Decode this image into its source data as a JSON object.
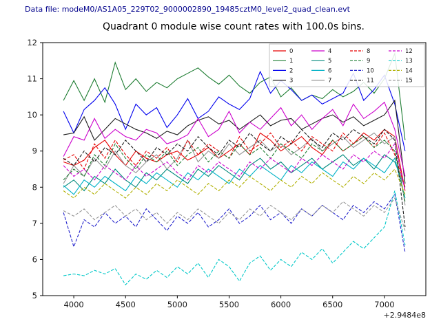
{
  "header": {
    "datafile_label": "Data file: modeM0/AS1A05_229T02_9000002890_19485cztM0_level2_quad_clean.evt"
  },
  "chart_data": {
    "type": "line",
    "title": "Quadrant 0 module wise count rates with 100.0s bins.",
    "xlabel": "",
    "ylabel": "",
    "x_offset_label": "+2.9484e8",
    "xlim": [
      3700,
      7400
    ],
    "ylim": [
      5,
      12
    ],
    "x_ticks": [
      4000,
      4500,
      5000,
      5500,
      6000,
      6500,
      7000
    ],
    "y_ticks": [
      5,
      6,
      7,
      8,
      9,
      10,
      11,
      12
    ],
    "grid": false,
    "legend_position": "upper right",
    "x": [
      3900,
      4000,
      4100,
      4200,
      4300,
      4400,
      4500,
      4600,
      4700,
      4800,
      4900,
      5000,
      5100,
      5200,
      5300,
      5400,
      5500,
      5600,
      5700,
      5800,
      5900,
      6000,
      6100,
      6200,
      6300,
      6400,
      6500,
      6600,
      6700,
      6800,
      6900,
      7000,
      7100,
      7200
    ],
    "series": [
      {
        "name": "0",
        "color": "#e60000",
        "dash": "solid",
        "values": [
          8.7,
          8.6,
          8.75,
          9.1,
          9.3,
          8.9,
          8.6,
          9.0,
          8.8,
          8.7,
          8.9,
          9.0,
          8.75,
          8.9,
          9.1,
          8.8,
          9.0,
          9.2,
          8.9,
          9.5,
          9.3,
          9.0,
          9.2,
          9.4,
          9.1,
          8.9,
          9.3,
          9.0,
          9.2,
          9.5,
          9.3,
          9.6,
          9.4,
          7.9
        ]
      },
      {
        "name": "1",
        "color": "#1e7d32",
        "dash": "solid",
        "values": [
          10.4,
          10.95,
          10.4,
          11.0,
          10.35,
          11.45,
          10.7,
          11.0,
          10.65,
          10.9,
          10.75,
          11.0,
          11.15,
          11.3,
          11.05,
          10.85,
          11.1,
          10.8,
          10.6,
          10.9,
          11.05,
          10.5,
          10.75,
          10.4,
          10.55,
          10.45,
          10.7,
          10.5,
          10.65,
          10.9,
          10.6,
          11.0,
          11.7,
          9.3
        ]
      },
      {
        "name": "2",
        "color": "#0000ee",
        "dash": "solid",
        "values": [
          10.1,
          9.5,
          10.15,
          10.4,
          10.75,
          10.3,
          9.6,
          10.3,
          10.0,
          10.2,
          9.65,
          10.0,
          10.45,
          9.9,
          10.1,
          10.5,
          10.3,
          10.15,
          10.45,
          11.2,
          10.6,
          10.95,
          10.7,
          10.4,
          10.55,
          10.3,
          10.45,
          10.6,
          11.15,
          10.4,
          10.7,
          11.1,
          10.3,
          9.0
        ]
      },
      {
        "name": "3",
        "color": "#1a1a1a",
        "dash": "solid",
        "values": [
          9.45,
          9.5,
          9.95,
          9.3,
          9.6,
          9.9,
          9.75,
          9.6,
          9.5,
          9.35,
          9.55,
          9.45,
          9.7,
          9.85,
          9.95,
          9.75,
          9.85,
          9.6,
          9.8,
          10.0,
          9.7,
          9.85,
          9.9,
          9.6,
          9.75,
          9.9,
          10.0,
          9.8,
          9.95,
          9.7,
          9.85,
          10.0,
          10.4,
          8.1
        ]
      },
      {
        "name": "4",
        "color": "#cc00cc",
        "dash": "solid",
        "values": [
          8.85,
          9.4,
          9.3,
          9.9,
          9.35,
          9.6,
          9.4,
          9.3,
          9.6,
          9.5,
          9.2,
          9.3,
          9.45,
          9.9,
          9.4,
          9.6,
          10.1,
          9.5,
          9.8,
          9.6,
          9.9,
          10.2,
          9.7,
          10.0,
          9.6,
          9.9,
          10.15,
          9.7,
          10.3,
          9.9,
          10.1,
          10.35,
          9.6,
          8.3
        ]
      },
      {
        "name": "5",
        "color": "#00897b",
        "dash": "solid",
        "values": [
          8.0,
          8.2,
          7.9,
          8.3,
          8.1,
          8.5,
          8.2,
          8.0,
          8.4,
          8.2,
          8.5,
          8.3,
          8.1,
          8.5,
          8.3,
          8.6,
          8.4,
          8.2,
          8.6,
          8.8,
          8.5,
          8.7,
          8.4,
          8.6,
          8.8,
          8.5,
          8.7,
          8.9,
          8.6,
          8.8,
          8.5,
          8.9,
          8.7,
          8.0
        ]
      },
      {
        "name": "6",
        "color": "#00b2c6",
        "dash": "solid",
        "values": [
          8.05,
          7.8,
          8.2,
          8.0,
          8.3,
          8.1,
          7.9,
          8.3,
          8.1,
          8.4,
          8.2,
          8.0,
          8.4,
          8.2,
          8.5,
          8.3,
          8.1,
          8.5,
          8.3,
          8.6,
          8.4,
          8.2,
          8.6,
          8.4,
          8.7,
          8.5,
          8.3,
          8.7,
          8.5,
          8.8,
          8.6,
          8.4,
          8.8,
          7.7
        ]
      },
      {
        "name": "7",
        "color": "#969696",
        "dash": "solid",
        "values": [
          8.1,
          8.6,
          8.3,
          8.8,
          8.5,
          9.0,
          8.6,
          8.4,
          8.7,
          8.9,
          8.5,
          8.8,
          9.3,
          8.7,
          9.0,
          8.8,
          9.2,
          8.9,
          9.1,
          9.3,
          9.0,
          9.2,
          8.9,
          9.1,
          9.35,
          9.0,
          9.2,
          9.4,
          9.1,
          9.3,
          9.5,
          9.2,
          9.4,
          7.5
        ]
      },
      {
        "name": "8",
        "color": "#e60000",
        "dash": "dashed",
        "values": [
          8.75,
          8.9,
          8.5,
          9.2,
          8.8,
          9.3,
          8.9,
          8.6,
          9.0,
          8.8,
          9.1,
          8.7,
          9.3,
          8.9,
          9.2,
          9.0,
          8.8,
          9.4,
          9.0,
          9.2,
          9.5,
          9.1,
          9.3,
          9.0,
          9.4,
          9.2,
          9.0,
          9.5,
          9.2,
          9.4,
          9.1,
          9.5,
          8.9,
          8.0
        ]
      },
      {
        "name": "9",
        "color": "#1e7d32",
        "dash": "dashed",
        "values": [
          8.2,
          8.5,
          8.3,
          8.9,
          8.6,
          9.2,
          8.8,
          8.5,
          8.9,
          8.7,
          9.0,
          8.6,
          8.9,
          9.1,
          8.7,
          9.0,
          8.8,
          9.2,
          8.9,
          9.1,
          8.8,
          9.2,
          9.0,
          8.8,
          9.2,
          9.0,
          9.3,
          9.0,
          9.2,
          9.4,
          9.1,
          9.3,
          9.0,
          7.6
        ]
      },
      {
        "name": "10",
        "color": "#2222cc",
        "dash": "dashed",
        "values": [
          7.3,
          6.35,
          7.1,
          6.9,
          7.3,
          7.0,
          7.2,
          6.9,
          7.4,
          7.1,
          6.8,
          7.2,
          7.0,
          7.3,
          6.9,
          7.1,
          7.4,
          7.0,
          7.2,
          7.5,
          7.1,
          7.3,
          7.0,
          7.4,
          7.2,
          7.5,
          7.3,
          7.1,
          7.5,
          7.3,
          7.6,
          7.4,
          7.8,
          6.2
        ]
      },
      {
        "name": "11",
        "color": "#1a1a1a",
        "dash": "dashed",
        "values": [
          8.8,
          8.6,
          9.0,
          8.7,
          9.1,
          8.9,
          9.3,
          9.0,
          8.7,
          9.1,
          8.9,
          9.2,
          9.0,
          9.4,
          9.1,
          8.9,
          9.3,
          9.1,
          9.5,
          9.2,
          9.0,
          9.4,
          9.2,
          9.6,
          9.3,
          9.1,
          9.5,
          9.3,
          9.6,
          9.4,
          9.2,
          9.6,
          9.3,
          6.9
        ]
      },
      {
        "name": "12",
        "color": "#cc00cc",
        "dash": "dashed",
        "values": [
          8.6,
          8.3,
          8.5,
          8.2,
          8.6,
          8.4,
          8.2,
          8.6,
          8.3,
          8.5,
          8.7,
          8.4,
          8.2,
          8.6,
          8.4,
          8.7,
          8.5,
          8.3,
          8.7,
          8.5,
          8.8,
          8.6,
          8.4,
          8.8,
          8.6,
          8.9,
          8.7,
          8.5,
          8.9,
          8.7,
          9.0,
          8.8,
          9.2,
          7.9
        ]
      },
      {
        "name": "13",
        "color": "#00c8c8",
        "dash": "dashed",
        "values": [
          5.55,
          5.6,
          5.55,
          5.7,
          5.6,
          5.75,
          5.3,
          5.6,
          5.45,
          5.7,
          5.5,
          5.8,
          5.6,
          5.9,
          5.5,
          6.0,
          5.8,
          5.4,
          5.9,
          6.1,
          5.7,
          6.0,
          5.8,
          6.2,
          6.0,
          6.3,
          5.9,
          6.2,
          6.5,
          6.3,
          6.6,
          6.9,
          7.9,
          6.4
        ]
      },
      {
        "name": "14",
        "color": "#b0b000",
        "dash": "dashed",
        "values": [
          7.9,
          7.7,
          8.0,
          7.8,
          8.1,
          7.9,
          7.7,
          8.0,
          7.8,
          8.1,
          7.9,
          8.2,
          8.0,
          7.8,
          8.1,
          7.9,
          8.2,
          8.0,
          8.3,
          8.1,
          7.9,
          8.2,
          8.0,
          8.3,
          8.1,
          8.4,
          8.2,
          8.0,
          8.3,
          8.1,
          8.4,
          8.2,
          8.5,
          7.8
        ]
      },
      {
        "name": "15",
        "color": "#969696",
        "dash": "dashed",
        "values": [
          7.35,
          7.2,
          7.4,
          7.1,
          7.3,
          7.5,
          7.2,
          7.4,
          7.1,
          7.3,
          7.0,
          7.3,
          7.1,
          7.4,
          7.2,
          7.0,
          7.3,
          7.1,
          7.4,
          7.2,
          7.5,
          7.3,
          7.1,
          7.4,
          7.2,
          7.5,
          7.3,
          7.6,
          7.4,
          7.2,
          7.5,
          7.3,
          7.7,
          6.8
        ]
      }
    ]
  }
}
